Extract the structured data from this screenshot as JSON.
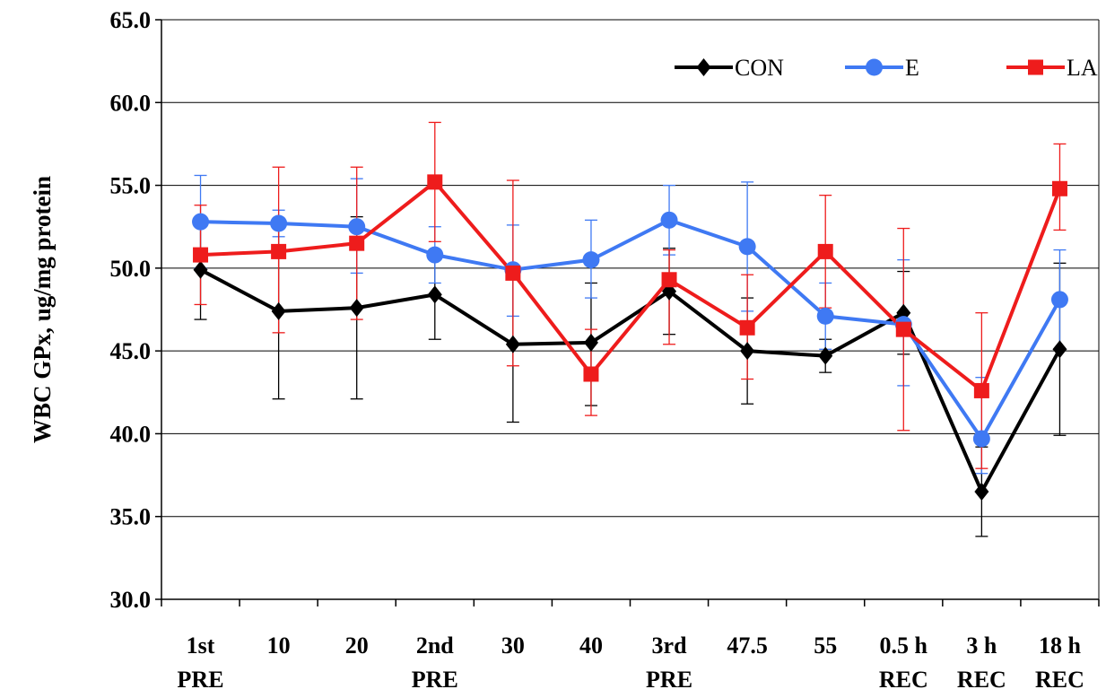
{
  "chart_data": {
    "type": "line",
    "title": "",
    "xlabel": "",
    "ylabel": "WBC GPx, ug/mg protein",
    "ylim": [
      30,
      65
    ],
    "yticks": [
      "30.0",
      "35.0",
      "40.0",
      "45.0",
      "50.0",
      "55.0",
      "60.0",
      "65.0"
    ],
    "grid": true,
    "legend_position": "top-right",
    "categories": [
      [
        "1st",
        "PRE"
      ],
      [
        "10",
        ""
      ],
      [
        "20",
        ""
      ],
      [
        "2nd",
        "PRE"
      ],
      [
        "30",
        ""
      ],
      [
        "40",
        ""
      ],
      [
        "3rd",
        "PRE"
      ],
      [
        "47.5",
        ""
      ],
      [
        "55",
        ""
      ],
      [
        "0.5 h",
        "REC"
      ],
      [
        "3 h",
        "REC"
      ],
      [
        "18 h",
        "REC"
      ]
    ],
    "series": [
      {
        "name": "CON",
        "color": "#000000",
        "marker": "diamond",
        "values": [
          49.9,
          47.4,
          47.6,
          48.4,
          45.4,
          45.5,
          48.6,
          45.0,
          44.7,
          47.3,
          36.5,
          45.1
        ],
        "err_upper": [
          2.9,
          5.3,
          5.5,
          2.7,
          4.7,
          3.6,
          2.6,
          3.2,
          1.0,
          2.5,
          2.7,
          5.2
        ],
        "err_lower": [
          3.0,
          5.3,
          5.5,
          2.7,
          4.7,
          3.8,
          2.6,
          3.2,
          1.0,
          2.5,
          2.7,
          5.2
        ]
      },
      {
        "name": "E",
        "color": "#3f79f3",
        "marker": "circle",
        "values": [
          52.8,
          52.7,
          52.5,
          50.8,
          49.9,
          50.5,
          52.9,
          51.3,
          47.1,
          46.6,
          39.7,
          48.1
        ],
        "err_upper": [
          2.8,
          0.8,
          2.9,
          1.7,
          2.7,
          2.4,
          2.1,
          3.9,
          2.0,
          3.9,
          3.7,
          3.0
        ],
        "err_lower": [
          2.8,
          0.8,
          2.8,
          1.7,
          2.8,
          2.3,
          2.1,
          3.9,
          2.0,
          3.7,
          2.1,
          3.0
        ]
      },
      {
        "name": "LA",
        "color": "#ee1c1c",
        "marker": "square",
        "values": [
          50.8,
          51.0,
          51.5,
          55.2,
          49.7,
          43.6,
          49.3,
          46.4,
          51.0,
          46.3,
          42.6,
          54.8
        ],
        "err_upper": [
          3.0,
          5.1,
          4.6,
          3.6,
          5.6,
          2.7,
          1.8,
          3.2,
          3.4,
          6.1,
          4.7,
          2.7
        ],
        "err_lower": [
          3.0,
          4.9,
          4.6,
          3.6,
          5.6,
          2.5,
          3.9,
          3.1,
          3.4,
          6.1,
          4.7,
          2.5
        ]
      }
    ]
  }
}
